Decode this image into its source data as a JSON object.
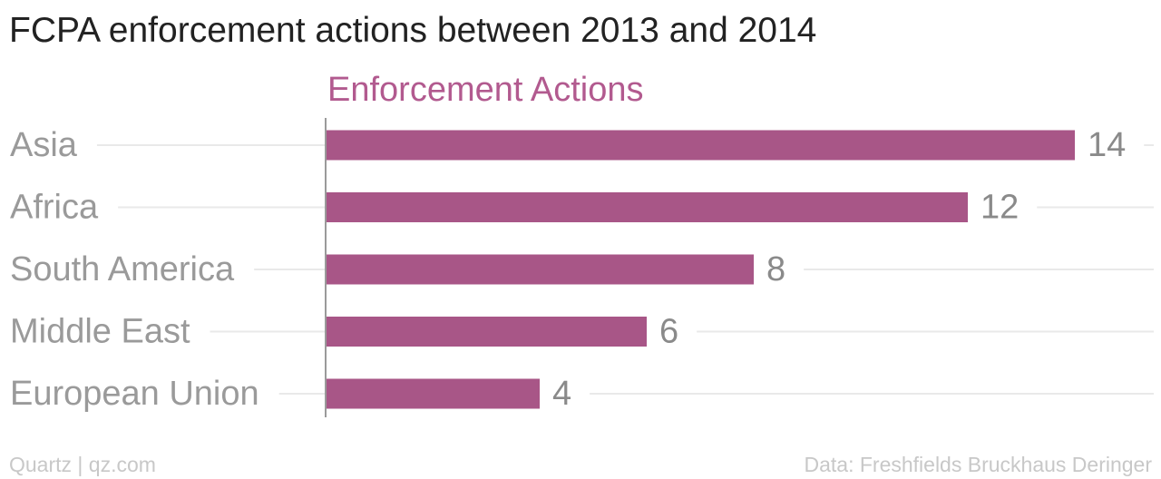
{
  "title": "FCPA enforcement actions between 2013 and 2014",
  "footer": {
    "credit": "Quartz | qz.com",
    "source": "Data: Freshfields Bruckhaus Deringer"
  },
  "colors": {
    "bar": "#a85687",
    "series_label": "#b25a8f",
    "category_text": "#9a9a9a",
    "value_text": "#8a8a8a",
    "gridline": "#e9e9e9",
    "axis": "#9a9a9a"
  },
  "chart_data": {
    "type": "bar",
    "orientation": "horizontal",
    "categories": [
      "Asia",
      "Africa",
      "South America",
      "Middle East",
      "European Union"
    ],
    "series": [
      {
        "name": "Enforcement Actions",
        "values": [
          14,
          12,
          8,
          6,
          4
        ]
      }
    ],
    "xlim": [
      0,
      14
    ],
    "grid": true,
    "data_labels": true
  }
}
